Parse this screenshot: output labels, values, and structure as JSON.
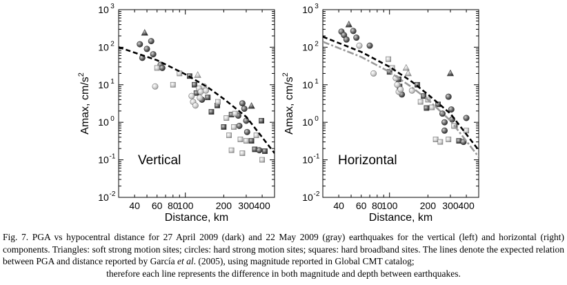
{
  "chart_data": [
    {
      "type": "scatter",
      "panel_label": "Vertical",
      "xscale": "log",
      "yscale": "log",
      "xlim": [
        30,
        500
      ],
      "ylim_exponents": [
        -2,
        3
      ],
      "xlabel": "Distance, km",
      "ylabel": "Amax, cm/s",
      "ylabel_sup": "2",
      "x_ticks": [
        {
          "value": 40,
          "label": "40"
        },
        {
          "value": 60,
          "label": "60"
        },
        {
          "value": 80,
          "label": "80"
        },
        {
          "value": 100,
          "label": "100"
        },
        {
          "value": 200,
          "label": "200"
        },
        {
          "value": 300,
          "label": "300"
        },
        {
          "value": 400,
          "label": "400"
        }
      ],
      "y_tick_exponents": [
        -2,
        -1,
        0,
        1,
        2,
        3
      ],
      "y_tick_base": "10",
      "lines": [
        {
          "name": "27 April 2009 expected relation",
          "style": "dark-dashed",
          "x": [
            30,
            60,
            100,
            150,
            200,
            300,
            500
          ],
          "y": [
            100,
            45,
            19,
            8.5,
            4.2,
            1.4,
            0.15
          ]
        }
      ],
      "series": [
        {
          "name": "27 April 2009 (dark)",
          "shade": "dark",
          "points": [
            {
              "x": 48,
              "y": 240,
              "m": "triangle"
            },
            {
              "x": 44,
              "y": 120,
              "m": "circle"
            },
            {
              "x": 50,
              "y": 90,
              "m": "circle"
            },
            {
              "x": 54,
              "y": 145,
              "m": "circle"
            },
            {
              "x": 56,
              "y": 65,
              "m": "circle"
            },
            {
              "x": 46,
              "y": 52,
              "m": "circle"
            },
            {
              "x": 64,
              "y": 34,
              "m": "circle"
            },
            {
              "x": 66,
              "y": 28,
              "m": "circle"
            },
            {
              "x": 108,
              "y": 17,
              "m": "square"
            },
            {
              "x": 118,
              "y": 10,
              "m": "square"
            },
            {
              "x": 122,
              "y": 6,
              "m": "square"
            },
            {
              "x": 135,
              "y": 4,
              "m": "circle"
            },
            {
              "x": 150,
              "y": 4.6,
              "m": "square"
            },
            {
              "x": 160,
              "y": 1.9,
              "m": "square"
            },
            {
              "x": 178,
              "y": 2.8,
              "m": "square"
            },
            {
              "x": 200,
              "y": 0.75,
              "m": "square"
            },
            {
              "x": 230,
              "y": 1.6,
              "m": "square"
            },
            {
              "x": 260,
              "y": 1.5,
              "m": "circle"
            },
            {
              "x": 265,
              "y": 0.8,
              "m": "circle"
            },
            {
              "x": 280,
              "y": 3.2,
              "m": "circle"
            },
            {
              "x": 290,
              "y": 2.3,
              "m": "circle"
            },
            {
              "x": 300,
              "y": 1.1,
              "m": "circle"
            },
            {
              "x": 305,
              "y": 0.55,
              "m": "circle"
            },
            {
              "x": 330,
              "y": 2.7,
              "m": "triangle"
            },
            {
              "x": 330,
              "y": 0.32,
              "m": "square"
            },
            {
              "x": 350,
              "y": 0.19,
              "m": "square"
            },
            {
              "x": 380,
              "y": 0.18,
              "m": "circle"
            },
            {
              "x": 420,
              "y": 0.17,
              "m": "square"
            },
            {
              "x": 395,
              "y": 1.1,
              "m": "square"
            }
          ]
        },
        {
          "name": "22 May 2009 (gray)",
          "shade": "gray",
          "points": [
            {
              "x": 60,
              "y": 28,
              "m": "square"
            },
            {
              "x": 58,
              "y": 9,
              "m": "circle"
            },
            {
              "x": 80,
              "y": 10,
              "m": "square"
            },
            {
              "x": 90,
              "y": 20,
              "m": "square"
            },
            {
              "x": 112,
              "y": 5,
              "m": "circle"
            },
            {
              "x": 115,
              "y": 3.5,
              "m": "circle"
            },
            {
              "x": 120,
              "y": 2.8,
              "m": "circle"
            },
            {
              "x": 125,
              "y": 18,
              "m": "triangle"
            },
            {
              "x": 128,
              "y": 8,
              "m": "circle"
            },
            {
              "x": 132,
              "y": 6.5,
              "m": "circle"
            },
            {
              "x": 140,
              "y": 9,
              "m": "circle"
            },
            {
              "x": 145,
              "y": 7,
              "m": "circle"
            },
            {
              "x": 130,
              "y": 4.5,
              "m": "circle"
            },
            {
              "x": 180,
              "y": 3.5,
              "m": "square"
            },
            {
              "x": 210,
              "y": 1.3,
              "m": "square"
            },
            {
              "x": 220,
              "y": 0.45,
              "m": "square"
            },
            {
              "x": 240,
              "y": 0.75,
              "m": "square"
            },
            {
              "x": 245,
              "y": 1.7,
              "m": "square"
            },
            {
              "x": 270,
              "y": 0.35,
              "m": "square"
            },
            {
              "x": 300,
              "y": 0.32,
              "m": "square"
            },
            {
              "x": 360,
              "y": 0.45,
              "m": "square"
            },
            {
              "x": 400,
              "y": 0.1,
              "m": "square"
            },
            {
              "x": 230,
              "y": 0.18,
              "m": "square"
            },
            {
              "x": 280,
              "y": 0.15,
              "m": "square"
            }
          ]
        }
      ]
    },
    {
      "type": "scatter",
      "panel_label": "Horizontal",
      "xscale": "log",
      "yscale": "log",
      "xlim": [
        30,
        500
      ],
      "ylim_exponents": [
        -2,
        3
      ],
      "xlabel": "Distance, km",
      "ylabel": "Amax, cm/s",
      "ylabel_sup": "2",
      "x_ticks": [
        {
          "value": 40,
          "label": "40"
        },
        {
          "value": 60,
          "label": "60"
        },
        {
          "value": 80,
          "label": "80"
        },
        {
          "value": 100,
          "label": "100"
        },
        {
          "value": 200,
          "label": "200"
        },
        {
          "value": 300,
          "label": "300"
        },
        {
          "value": 400,
          "label": "400"
        }
      ],
      "y_tick_exponents": [
        -2,
        -1,
        0,
        1,
        2,
        3
      ],
      "y_tick_base": "10",
      "lines": [
        {
          "name": "27 April 2009 expected relation",
          "style": "dark-dashed",
          "x": [
            30,
            60,
            100,
            150,
            200,
            300,
            500
          ],
          "y": [
            190,
            75,
            30,
            12,
            5.5,
            1.7,
            0.18
          ]
        },
        {
          "name": "22 May 2009 expected relation",
          "style": "gray-dashdot",
          "x": [
            30,
            60,
            100,
            150,
            200,
            300,
            500
          ],
          "y": [
            140,
            55,
            22,
            8.5,
            4,
            1.1,
            0.12
          ]
        }
      ],
      "series": [
        {
          "name": "27 April 2009 (dark)",
          "shade": "dark",
          "points": [
            {
              "x": 48,
              "y": 400,
              "m": "triangle"
            },
            {
              "x": 42,
              "y": 260,
              "m": "circle"
            },
            {
              "x": 44,
              "y": 210,
              "m": "circle"
            },
            {
              "x": 52,
              "y": 270,
              "m": "circle"
            },
            {
              "x": 55,
              "y": 180,
              "m": "circle"
            },
            {
              "x": 46,
              "y": 160,
              "m": "circle"
            },
            {
              "x": 70,
              "y": 110,
              "m": "circle"
            },
            {
              "x": 100,
              "y": 22,
              "m": "square"
            },
            {
              "x": 118,
              "y": 14,
              "m": "square"
            },
            {
              "x": 120,
              "y": 9,
              "m": "square"
            },
            {
              "x": 125,
              "y": 5.5,
              "m": "circle"
            },
            {
              "x": 165,
              "y": 10,
              "m": "square"
            },
            {
              "x": 185,
              "y": 5,
              "m": "square"
            },
            {
              "x": 195,
              "y": 2.4,
              "m": "square"
            },
            {
              "x": 240,
              "y": 3,
              "m": "square"
            },
            {
              "x": 260,
              "y": 1.7,
              "m": "circle"
            },
            {
              "x": 270,
              "y": 1,
              "m": "circle"
            },
            {
              "x": 290,
              "y": 4.8,
              "m": "circle"
            },
            {
              "x": 300,
              "y": 20,
              "m": "triangle"
            },
            {
              "x": 305,
              "y": 2.2,
              "m": "circle"
            },
            {
              "x": 310,
              "y": 1.2,
              "m": "circle"
            },
            {
              "x": 325,
              "y": 0.8,
              "m": "square"
            },
            {
              "x": 350,
              "y": 0.32,
              "m": "square"
            },
            {
              "x": 380,
              "y": 0.3,
              "m": "circle"
            },
            {
              "x": 400,
              "y": 1.3,
              "m": "circle"
            },
            {
              "x": 270,
              "y": 0.6,
              "m": "circle"
            }
          ]
        },
        {
          "name": "22 May 2009 (gray)",
          "shade": "gray",
          "points": [
            {
              "x": 58,
              "y": 110,
              "m": "circle"
            },
            {
              "x": 75,
              "y": 20,
              "m": "circle"
            },
            {
              "x": 98,
              "y": 48,
              "m": "square"
            },
            {
              "x": 105,
              "y": 28,
              "m": "square"
            },
            {
              "x": 112,
              "y": 15,
              "m": "circle"
            },
            {
              "x": 115,
              "y": 10,
              "m": "circle"
            },
            {
              "x": 118,
              "y": 6.5,
              "m": "circle"
            },
            {
              "x": 122,
              "y": 7.5,
              "m": "circle"
            },
            {
              "x": 135,
              "y": 28,
              "m": "triangle"
            },
            {
              "x": 140,
              "y": 20,
              "m": "triangle"
            },
            {
              "x": 150,
              "y": 7,
              "m": "circle"
            },
            {
              "x": 175,
              "y": 3.5,
              "m": "square"
            },
            {
              "x": 200,
              "y": 4,
              "m": "square"
            },
            {
              "x": 215,
              "y": 2.5,
              "m": "square"
            },
            {
              "x": 230,
              "y": 0.35,
              "m": "square"
            },
            {
              "x": 250,
              "y": 0.3,
              "m": "square"
            },
            {
              "x": 290,
              "y": 0.35,
              "m": "square"
            },
            {
              "x": 320,
              "y": 0.8,
              "m": "square"
            },
            {
              "x": 400,
              "y": 0.6,
              "m": "square"
            }
          ]
        }
      ]
    }
  ],
  "caption": {
    "prefix": "Fig. 7. PGA vs hypocentral distance for 27 April 2009 (dark) and 22 May 2009 (gray) earthquakes for the vertical (left) and horizontal (right) components. Triangles: soft strong motion sites; circles: hard strong motion sites; squares: hard broadband sites. The lines denote the expected relation between PGA and distance reported by García ",
    "italic": "et al",
    "suffix": ". (2005), using magnitude reported in Global CMT catalog;",
    "last_line": "therefore each line represents the difference in both magnitude and depth between earthquakes."
  }
}
